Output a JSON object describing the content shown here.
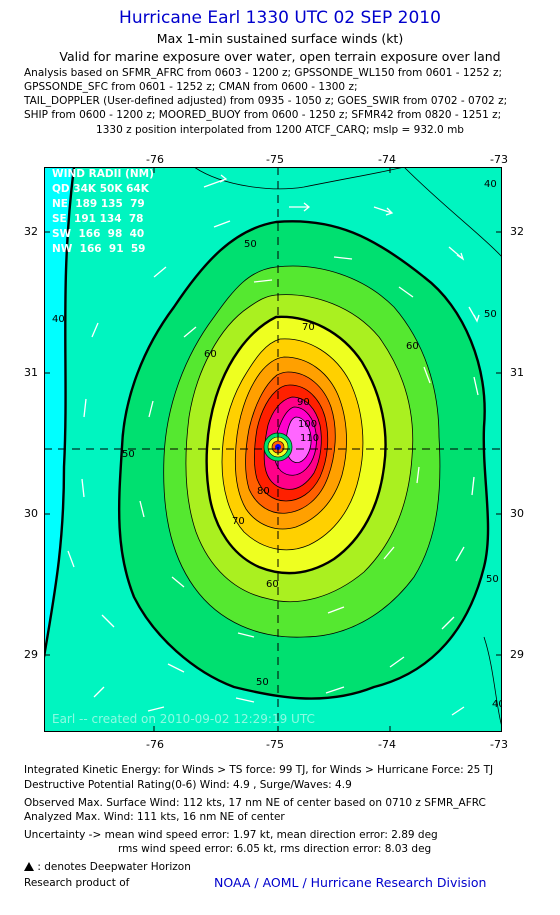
{
  "header": {
    "title": "Hurricane Earl 1330 UTC 02 SEP 2010",
    "subtitle": "Max 1-min sustained surface winds (kt)",
    "valid_line": "Valid for marine exposure over water, open terrain exposure over land",
    "analysis_lines": [
      "Analysis based on SFMR_AFRC from 0603 - 1200 z; GPSSONDE_WL150 from 0601 - 1252 z;",
      "GPSSONDE_SFC from 0601 - 1252 z; CMAN from 0600 - 1300 z;",
      "TAIL_DOPPLER (User-defined adjusted) from 0935 - 1050 z; GOES_SWIR from 0702 - 0702 z;",
      "SHIP from 0600 - 1200 z; MOORED_BUOY from 0600 - 1250 z; SFMR42 from 0820 - 1251 z;"
    ],
    "position_line": "1330 z position interpolated from 1200 ATCF_CARQ; mslp = 932.0 mb"
  },
  "map": {
    "lon_ticks": [
      "-76",
      "-75",
      "-74",
      "-73"
    ],
    "lat_ticks": [
      "32",
      "31",
      "30",
      "29"
    ],
    "lon_range": [
      -76.95,
      -72.95
    ],
    "lat_range": [
      28.45,
      32.45
    ],
    "center": {
      "lon": -74.98,
      "lat": 30.46
    },
    "contour_labels": [
      "40",
      "50",
      "60",
      "70",
      "80",
      "90",
      "100",
      "110"
    ],
    "wind_radii": {
      "title": "WIND RADII (NM)",
      "header": "QD 34K 50K 64K",
      "rows": [
        "NE  189 135  79",
        "SE  191 134  78",
        "SW  166  98  40",
        "NW  166  91  59"
      ]
    },
    "credit": "Earl -- created on 2010-09-02 12:29:19 UTC",
    "colors": {
      "c30": "#00ffff",
      "c40": "#00f5c0",
      "c50": "#00e070",
      "c55": "#55e830",
      "c60": "#aaf020",
      "c65": "#eeff20",
      "c70": "#ffd000",
      "c75": "#ffa000",
      "c80": "#ff6000",
      "c85": "#ff2000",
      "c90": "#ff0088",
      "c100": "#ff00cc",
      "c110": "#ff66ff"
    }
  },
  "footer": {
    "ike": "Integrated Kinetic Energy:  for Winds > TS force: 99 TJ,  for Winds > Hurricane Force: 25 TJ",
    "dpr": "Destructive Potential Rating(0-6)   Wind: 4.9 , Surge/Waves: 4.9",
    "obs": "Observed Max. Surface Wind: 112 kts, 17 nm NE of center based on 0710 z SFMR_AFRC",
    "analyzed": "Analyzed Max. Wind: 111 kts, 16 nm NE of center",
    "unc1": "Uncertainty -> mean wind speed error: 1.97 kt,   mean direction error: 2.89 deg",
    "unc2": "rms wind speed error: 6.05 kt,   rms direction error: 8.03 deg",
    "deepwater": ": denotes Deepwater Horizon",
    "research": "Research product of",
    "division": "NOAA / AOML / Hurricane Research Division"
  }
}
